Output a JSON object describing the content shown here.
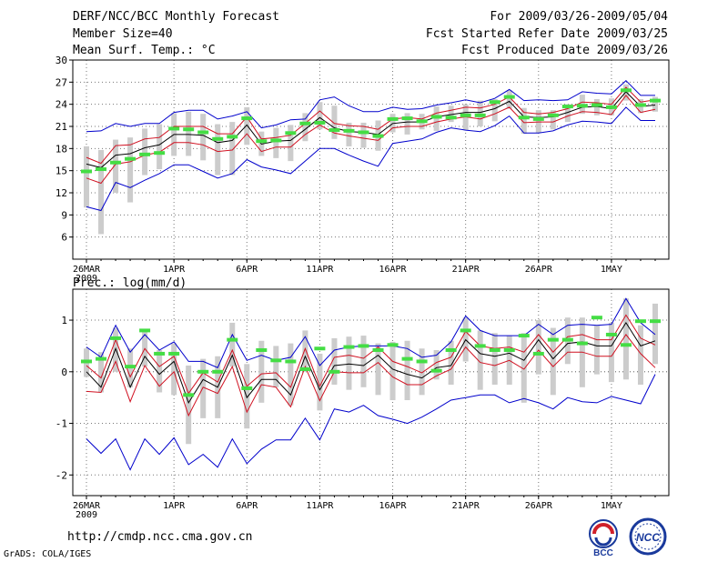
{
  "header": {
    "title": "DERF/NCC/BCC Monthly Forecast",
    "member_size": "Member Size=40",
    "variable": "Mean Surf. Temp.: °C",
    "period": "For 2009/03/26-2009/05/04",
    "started": "Fcst Started Refer Date 2009/03/25",
    "produced": "Fcst Produced Date 2009/03/26"
  },
  "footer": {
    "url": "http://cmdp.ncc.cma.gov.cn",
    "grads": "GrADS: COLA/IGES",
    "logo_bcc": "BCC",
    "logo_ncc": "NCC"
  },
  "colors": {
    "mean": "#000000",
    "spread": "#d01020",
    "extreme": "#0000cc",
    "observed": "#44dd44",
    "box": "#cccccc",
    "grid": "#777777"
  },
  "chart_data": [
    {
      "type": "line",
      "title": "Mean Surf. Temp.: °C",
      "ylim": [
        3,
        30
      ],
      "yticks": [
        6,
        9,
        12,
        15,
        18,
        21,
        24,
        27,
        30
      ],
      "xticks": [
        {
          "day": 0,
          "label": "26MAR",
          "sub": "2009"
        },
        {
          "day": 6,
          "label": "1APR"
        },
        {
          "day": 11,
          "label": "6APR"
        },
        {
          "day": 16,
          "label": "11APR"
        },
        {
          "day": 21,
          "label": "16APR"
        },
        {
          "day": 26,
          "label": "21APR"
        },
        {
          "day": 31,
          "label": "26APR"
        },
        {
          "day": 36,
          "label": "1MAY"
        }
      ],
      "series": [
        {
          "name": "ensemble-max",
          "values": [
            20.3,
            20.4,
            21.4,
            21.0,
            21.4,
            21.4,
            22.9,
            23.2,
            23.2,
            22.0,
            22.4,
            23.0,
            20.8,
            21.2,
            21.9,
            22.0,
            24.6,
            25.0,
            23.8,
            23.0,
            23.0,
            23.6,
            23.3,
            23.4,
            23.9,
            24.2,
            24.6,
            24.2,
            24.8,
            26.0,
            24.5,
            24.6,
            24.5,
            24.6,
            25.7,
            25.5,
            25.4,
            27.2,
            25.2,
            25.2
          ]
        },
        {
          "name": "upper-spread",
          "values": [
            16.8,
            16.0,
            18.4,
            18.5,
            19.3,
            19.5,
            21.0,
            21.0,
            21.0,
            20.0,
            20.0,
            22.3,
            19.3,
            19.5,
            19.8,
            21.4,
            23.1,
            21.4,
            21.1,
            21.0,
            20.6,
            22.0,
            22.2,
            22.0,
            22.8,
            23.2,
            23.6,
            23.5,
            24.0,
            25.0,
            22.9,
            22.7,
            22.9,
            23.4,
            24.3,
            24.2,
            24.0,
            26.3,
            24.3,
            24.6
          ]
        },
        {
          "name": "ensemble-mean",
          "values": [
            15.9,
            15.4,
            17.1,
            17.3,
            18.1,
            18.5,
            19.9,
            19.9,
            19.8,
            18.8,
            19.1,
            21.2,
            18.6,
            19.0,
            19.1,
            20.6,
            22.2,
            20.8,
            20.3,
            20.2,
            19.9,
            21.4,
            21.6,
            21.6,
            22.3,
            22.6,
            22.9,
            22.9,
            23.4,
            24.4,
            22.3,
            22.2,
            22.3,
            22.9,
            23.6,
            23.7,
            23.4,
            25.7,
            23.7,
            23.9
          ]
        },
        {
          "name": "lower-spread",
          "values": [
            14.0,
            13.3,
            15.9,
            16.2,
            17.1,
            17.5,
            18.8,
            18.8,
            18.5,
            17.6,
            17.8,
            20.0,
            17.6,
            18.2,
            18.2,
            19.9,
            21.2,
            20.1,
            19.7,
            19.4,
            19.1,
            20.8,
            21.0,
            21.0,
            21.6,
            22.0,
            22.3,
            22.0,
            22.7,
            23.6,
            21.5,
            21.6,
            21.6,
            22.4,
            23.0,
            22.9,
            22.6,
            25.2,
            22.9,
            23.3
          ]
        },
        {
          "name": "ensemble-min",
          "values": [
            10.1,
            9.6,
            13.4,
            12.7,
            13.7,
            14.6,
            15.8,
            15.8,
            14.9,
            14.0,
            14.6,
            16.5,
            15.5,
            15.1,
            14.6,
            16.3,
            18.0,
            18.0,
            17.1,
            16.3,
            15.6,
            18.7,
            19.0,
            19.3,
            20.2,
            20.8,
            20.5,
            20.3,
            21.1,
            22.4,
            20.1,
            20.1,
            20.4,
            21.2,
            21.7,
            21.6,
            21.4,
            23.6,
            21.8,
            21.8
          ]
        }
      ],
      "boxes": {
        "low": [
          10.0,
          6.4,
          12.0,
          10.7,
          14.4,
          15.2,
          17.0,
          17.0,
          16.4,
          14.4,
          14.4,
          18.5,
          17.0,
          16.7,
          16.3,
          19.0,
          20.6,
          19.3,
          18.3,
          18.1,
          17.7,
          20.2,
          19.9,
          20.6,
          20.4,
          21.6,
          20.5,
          21.0,
          21.7,
          23.4,
          20.0,
          20.1,
          20.6,
          21.6,
          22.7,
          22.5,
          22.5,
          24.5,
          22.8,
          23.0
        ],
        "high": [
          18.3,
          17.8,
          19.2,
          19.5,
          20.7,
          21.3,
          22.8,
          23.0,
          22.7,
          21.3,
          21.6,
          23.6,
          20.3,
          20.8,
          21.2,
          22.8,
          24.3,
          23.8,
          21.5,
          21.5,
          21.8,
          22.7,
          22.8,
          22.7,
          23.7,
          23.8,
          24.0,
          24.5,
          24.7,
          25.9,
          23.5,
          23.2,
          23.2,
          24.0,
          25.3,
          24.7,
          24.8,
          26.7,
          24.7,
          25.0
        ]
      },
      "observed": [
        14.9,
        15.2,
        16.1,
        16.6,
        17.2,
        17.4,
        20.7,
        20.6,
        20.2,
        19.3,
        19.6,
        22.1,
        19.0,
        19.1,
        20.1,
        21.4,
        21.5,
        20.5,
        20.4,
        20.2,
        19.7,
        22.0,
        22.1,
        21.7,
        22.3,
        22.2,
        22.5,
        22.5,
        24.3,
        25.0,
        22.2,
        22.0,
        22.5,
        23.7,
        23.8,
        23.9,
        23.6,
        25.9,
        23.9,
        24.5
      ]
    },
    {
      "type": "line",
      "title": "Prec.: log(mm/d)",
      "ylim": [
        -2.4,
        1.6
      ],
      "yticks": [
        -2,
        -1,
        0,
        1
      ],
      "xticks": [
        {
          "day": 0,
          "label": "26MAR",
          "sub": "2009"
        },
        {
          "day": 6,
          "label": "1APR"
        },
        {
          "day": 11,
          "label": "6APR"
        },
        {
          "day": 16,
          "label": "11APR"
        },
        {
          "day": 21,
          "label": "16APR"
        },
        {
          "day": 26,
          "label": "21APR"
        },
        {
          "day": 31,
          "label": "26APR"
        },
        {
          "day": 36,
          "label": "1MAY"
        }
      ],
      "series": [
        {
          "name": "ensemble-max",
          "values": [
            0.48,
            0.28,
            0.9,
            0.38,
            0.72,
            0.42,
            0.58,
            0.2,
            0.2,
            0.08,
            0.72,
            0.22,
            0.32,
            0.22,
            0.28,
            0.68,
            0.12,
            0.42,
            0.48,
            0.5,
            0.5,
            0.5,
            0.45,
            0.28,
            0.32,
            0.58,
            1.08,
            0.8,
            0.7,
            0.7,
            0.7,
            0.92,
            0.72,
            0.9,
            0.92,
            0.9,
            0.92,
            1.42,
            0.95,
            0.72
          ]
        },
        {
          "name": "upper-spread",
          "values": [
            0.12,
            -0.12,
            0.62,
            -0.1,
            0.45,
            0.1,
            0.3,
            -0.42,
            -0.02,
            -0.2,
            0.42,
            -0.28,
            -0.04,
            -0.02,
            -0.3,
            0.45,
            -0.28,
            0.28,
            0.32,
            0.26,
            0.48,
            0.2,
            0.1,
            -0.02,
            0.18,
            0.28,
            0.78,
            0.5,
            0.45,
            0.48,
            0.38,
            0.72,
            0.38,
            0.68,
            0.72,
            0.62,
            0.62,
            1.1,
            0.65,
            0.52
          ]
        },
        {
          "name": "ensemble-mean",
          "values": [
            0.0,
            -0.3,
            0.45,
            -0.3,
            0.3,
            -0.05,
            0.2,
            -0.6,
            -0.15,
            -0.3,
            0.32,
            -0.5,
            -0.15,
            -0.15,
            -0.45,
            0.3,
            -0.35,
            0.12,
            0.15,
            0.12,
            0.32,
            0.05,
            -0.05,
            -0.12,
            0.08,
            0.12,
            0.62,
            0.35,
            0.3,
            0.36,
            0.22,
            0.62,
            0.25,
            0.55,
            0.58,
            0.5,
            0.5,
            0.95,
            0.5,
            0.6
          ]
        },
        {
          "name": "lower-spread",
          "values": [
            -0.38,
            -0.4,
            0.2,
            -0.58,
            0.12,
            -0.28,
            0.0,
            -0.85,
            -0.3,
            -0.42,
            0.1,
            -0.78,
            -0.25,
            -0.3,
            -0.68,
            0.1,
            -0.56,
            0.0,
            -0.02,
            -0.02,
            0.18,
            -0.1,
            -0.25,
            -0.25,
            -0.08,
            0.05,
            0.48,
            0.18,
            0.12,
            0.22,
            0.05,
            0.42,
            0.1,
            0.38,
            0.38,
            0.3,
            0.3,
            0.72,
            0.35,
            0.08
          ]
        },
        {
          "name": "ensemble-min",
          "values": [
            -1.3,
            -1.58,
            -1.3,
            -1.9,
            -1.3,
            -1.6,
            -1.28,
            -1.8,
            -1.6,
            -1.85,
            -1.3,
            -1.78,
            -1.5,
            -1.32,
            -1.32,
            -0.9,
            -1.32,
            -0.72,
            -0.78,
            -0.65,
            -0.85,
            -0.92,
            -1.0,
            -0.88,
            -0.72,
            -0.55,
            -0.5,
            -0.45,
            -0.45,
            -0.6,
            -0.52,
            -0.6,
            -0.72,
            -0.5,
            -0.58,
            -0.6,
            -0.48,
            -0.55,
            -0.62,
            -0.05
          ]
        }
      ],
      "boxes": {
        "low": [
          -0.1,
          -0.4,
          0.0,
          -0.3,
          0.1,
          -0.4,
          -0.45,
          -1.4,
          -0.9,
          -0.9,
          0.1,
          -1.1,
          -0.6,
          -0.3,
          -0.65,
          0.0,
          -0.75,
          -0.25,
          -0.35,
          -0.3,
          -0.45,
          -0.55,
          -0.55,
          -0.45,
          -0.15,
          -0.25,
          0.2,
          -0.35,
          -0.25,
          -0.25,
          -0.6,
          -0.05,
          -0.45,
          0.15,
          -0.3,
          -0.05,
          -0.2,
          -0.15,
          -0.25,
          0.15
        ],
        "high": [
          0.45,
          0.38,
          0.85,
          0.45,
          0.8,
          0.42,
          0.55,
          0.12,
          0.25,
          0.3,
          0.95,
          0.15,
          0.6,
          0.5,
          0.55,
          0.8,
          0.35,
          0.65,
          0.68,
          0.7,
          0.55,
          0.58,
          0.6,
          0.45,
          0.42,
          0.6,
          1.05,
          0.8,
          0.75,
          0.7,
          0.75,
          1.0,
          0.85,
          1.05,
          1.05,
          0.9,
          0.95,
          1.42,
          0.9,
          1.32
        ]
      },
      "observed": [
        0.2,
        0.25,
        0.65,
        0.1,
        0.8,
        0.35,
        0.35,
        -0.45,
        0.0,
        0.0,
        0.62,
        -0.32,
        0.42,
        0.22,
        0.2,
        0.05,
        0.45,
        0.0,
        0.48,
        0.5,
        0.42,
        0.52,
        0.25,
        0.2,
        0.02,
        0.42,
        0.8,
        0.5,
        0.42,
        0.42,
        0.7,
        0.35,
        0.62,
        0.62,
        0.55,
        1.05,
        0.72,
        0.52,
        0.98,
        0.98
      ]
    }
  ]
}
